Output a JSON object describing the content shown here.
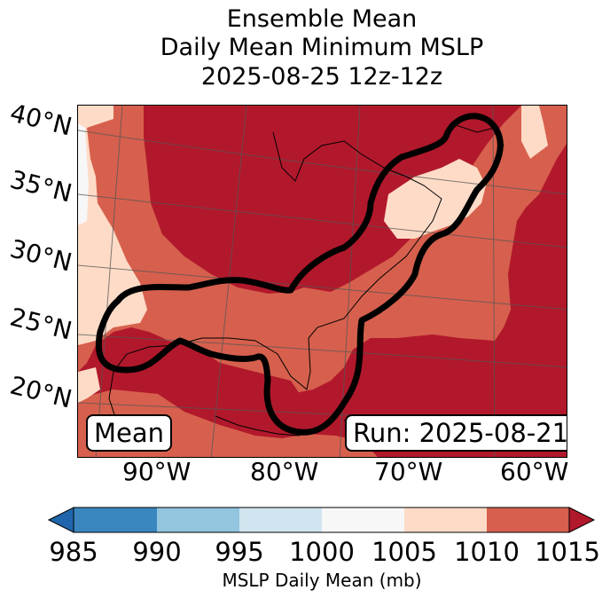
{
  "title": {
    "line1": "Ensemble Mean",
    "line2": "Daily Mean Minimum MSLP",
    "line3": "2025-08-25 12z-12z"
  },
  "map": {
    "lat_labels": [
      "40°N",
      "35°N",
      "30°N",
      "25°N",
      "20°N"
    ],
    "lon_labels": [
      "90°W",
      "80°W",
      "70°W",
      "60°W"
    ],
    "mean_box": "Mean",
    "run_box": "Run: 2025-08-21"
  },
  "colorbar": {
    "ticks": [
      "985",
      "990",
      "995",
      "1000",
      "1005",
      "1010",
      "1015"
    ],
    "label": "MSLP Daily Mean (mb)",
    "colors": [
      "#2166ac",
      "#3a87c0",
      "#92c5de",
      "#d1e5f0",
      "#f7f7f7",
      "#fddbc7",
      "#d6604d",
      "#b2182b"
    ]
  },
  "colors": {
    "dark_red": "#b2182b",
    "mid_red": "#d6604d",
    "light_salmon": "#fddbc7",
    "near_white": "#f7f7f7",
    "outline": "#000000"
  }
}
